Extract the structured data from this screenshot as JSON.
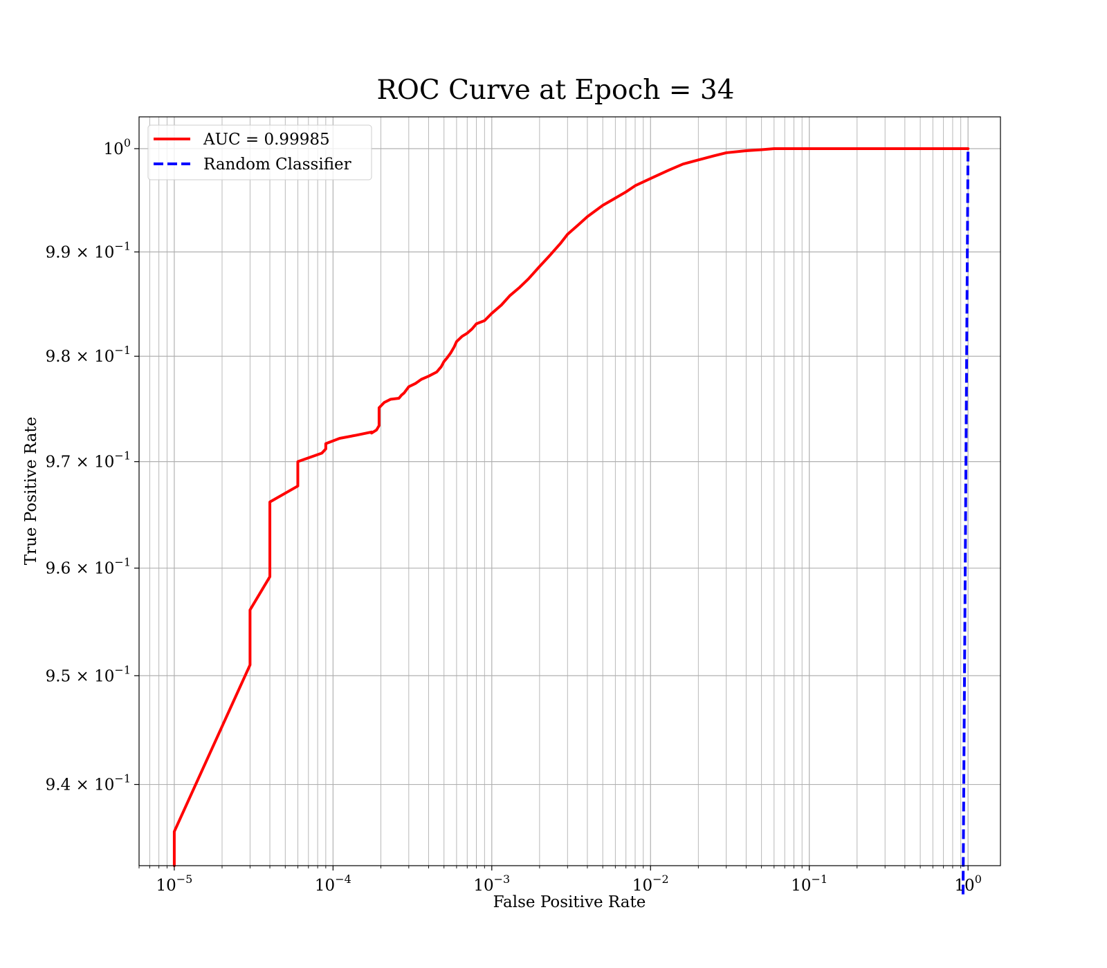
{
  "chart_data": {
    "type": "line",
    "title": "ROC Curve at Epoch = 34",
    "xlabel": "False Positive Rate",
    "ylabel": "True Positive Rate",
    "xscale": "log",
    "yscale": "log",
    "xlim": [
      6e-06,
      1.6
    ],
    "ylim": [
      0.9326,
      1.0031
    ],
    "grid": true,
    "grid_minor": true,
    "legend_position": "top-left",
    "x_ticks": [
      {
        "base": "10",
        "exp": "−5",
        "value": 1e-05
      },
      {
        "base": "10",
        "exp": "−4",
        "value": 0.0001
      },
      {
        "base": "10",
        "exp": "−3",
        "value": 0.001
      },
      {
        "base": "10",
        "exp": "−2",
        "value": 0.01
      },
      {
        "base": "10",
        "exp": "−1",
        "value": 0.1
      },
      {
        "base": "10",
        "exp": "0",
        "value": 1
      }
    ],
    "y_ticks": [
      {
        "mant": "9.4 × 10",
        "exp": "−1",
        "base": "",
        "value": 0.94
      },
      {
        "mant": "9.5 × 10",
        "exp": "−1",
        "base": "",
        "value": 0.95
      },
      {
        "mant": "9.6 × 10",
        "exp": "−1",
        "base": "",
        "value": 0.96
      },
      {
        "mant": "9.7 × 10",
        "exp": "−1",
        "base": "",
        "value": 0.97
      },
      {
        "mant": "9.8 × 10",
        "exp": "−1",
        "base": "",
        "value": 0.98
      },
      {
        "mant": "9.9 × 10",
        "exp": "−1",
        "base": "",
        "value": 0.99
      },
      {
        "mant": "",
        "exp": "0",
        "base": "10",
        "value": 1.0
      }
    ],
    "series": [
      {
        "name": "AUC = 0.99985",
        "color": "#ff0000",
        "dash": "solid",
        "x": [
          1e-05,
          1e-05,
          3e-05,
          3e-05,
          4e-05,
          4e-05,
          6e-05,
          6e-05,
          8.5e-05,
          9e-05,
          9e-05,
          0.00011,
          0.00014,
          0.000175,
          0.000175,
          0.000188,
          0.000195,
          0.000195,
          0.00021,
          0.00023,
          0.00026,
          0.00027,
          0.00028,
          0.0003,
          0.00033,
          0.00036,
          0.0004,
          0.00045,
          0.00048,
          0.0005,
          0.00052,
          0.00055,
          0.00058,
          0.0006,
          0.00065,
          0.0007,
          0.00075,
          0.0008,
          0.0009,
          0.001,
          0.00115,
          0.0013,
          0.0015,
          0.0017,
          0.002,
          0.0023,
          0.0027,
          0.003,
          0.0035,
          0.004,
          0.005,
          0.006,
          0.007,
          0.008,
          0.01,
          0.013,
          0.016,
          0.02,
          0.025,
          0.03,
          0.04,
          0.05,
          0.06,
          0.07,
          0.08,
          0.1,
          0.12,
          0.2,
          0.5,
          1.0
        ],
        "y": [
          0.9326,
          0.9357,
          0.951,
          0.9561,
          0.9592,
          0.9662,
          0.9677,
          0.97,
          0.9708,
          0.9712,
          0.9717,
          0.9722,
          0.9725,
          0.9728,
          0.9727,
          0.973,
          0.9734,
          0.9751,
          0.9756,
          0.9759,
          0.976,
          0.9763,
          0.9765,
          0.9771,
          0.9774,
          0.9778,
          0.9781,
          0.9785,
          0.979,
          0.9795,
          0.9798,
          0.9803,
          0.9809,
          0.9814,
          0.9819,
          0.9822,
          0.9826,
          0.9831,
          0.9834,
          0.9841,
          0.9849,
          0.9858,
          0.9866,
          0.9874,
          0.9886,
          0.9896,
          0.9908,
          0.9917,
          0.9926,
          0.9934,
          0.9945,
          0.9952,
          0.9958,
          0.9964,
          0.9971,
          0.9979,
          0.9985,
          0.9989,
          0.9993,
          0.9996,
          0.9998,
          0.9999,
          1.0,
          1.0,
          1.0,
          1.0,
          1.0,
          1.0,
          1.0,
          1.0
        ]
      },
      {
        "name": "Random Classifier",
        "color": "#0000ff",
        "dash": "dashed",
        "x": [
          0.93,
          1.0
        ],
        "y": [
          0.93,
          1.0
        ]
      }
    ]
  }
}
